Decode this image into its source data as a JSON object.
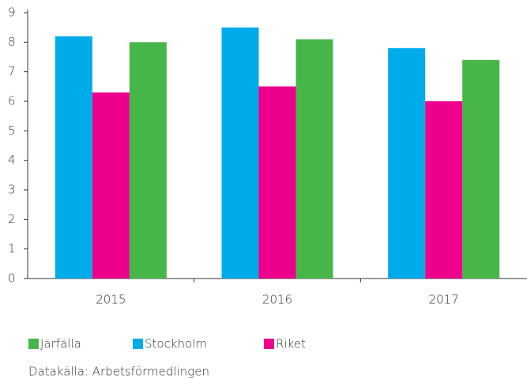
{
  "chart_data": {
    "type": "bar",
    "categories": [
      "2015",
      "2016",
      "2017"
    ],
    "series": [
      {
        "name": "Järfälla",
        "color": "#46b648",
        "values": [
          8.0,
          8.1,
          7.4
        ]
      },
      {
        "name": "Stockholm",
        "color": "#00abe9",
        "values": [
          8.2,
          8.5,
          7.8
        ]
      },
      {
        "name": "Riket",
        "color": "#ec008c",
        "values": [
          6.3,
          6.5,
          6.0
        ]
      }
    ],
    "ylim": [
      0,
      9
    ],
    "yticks": [
      0,
      1,
      2,
      3,
      4,
      5,
      6,
      7,
      8,
      9
    ],
    "grid": false,
    "source": "Datakälla: Arbetsförmedlingen"
  }
}
